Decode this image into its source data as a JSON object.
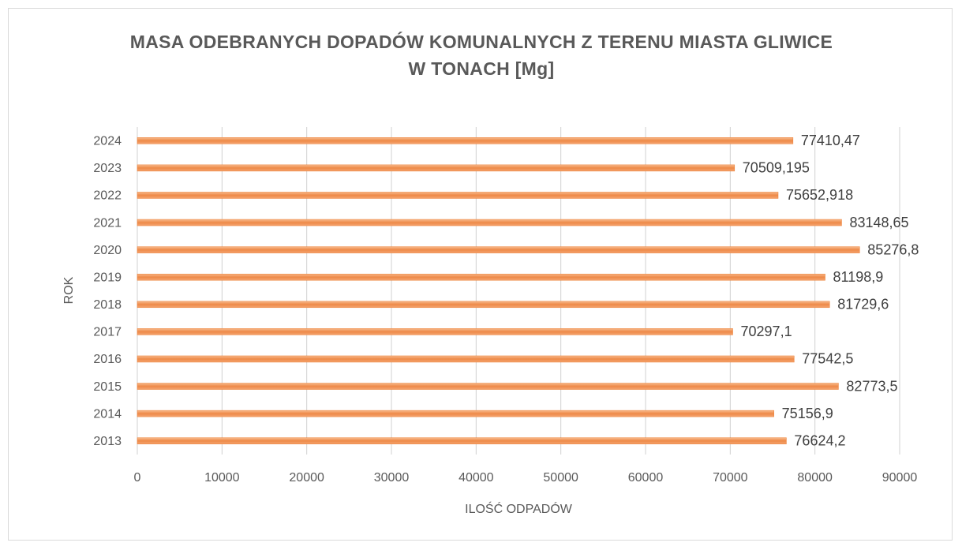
{
  "chart_data": {
    "type": "hbar",
    "title": "MASA ODEBRANYCH DOPADÓW KOMUNALNYCH Z TERENU MIASTA GLIWICE W TONACH [Mg]",
    "xlabel": "ILOŚĆ ODPADÓW",
    "ylabel": "ROK",
    "categories": [
      "2013",
      "2014",
      "2015",
      "2016",
      "2017",
      "2018",
      "2019",
      "2020",
      "2021",
      "2022",
      "2023",
      "2024"
    ],
    "values": [
      76624.2,
      75156.9,
      82773.5,
      77542.5,
      70297.1,
      81729.6,
      81198.9,
      85276.8,
      83148.65,
      75652.918,
      70509.195,
      77410.47
    ],
    "value_labels": [
      "76624,2",
      "75156,9",
      "82773,5",
      "77542,5",
      "70297,1",
      "81729,6",
      "81198,9",
      "85276,8",
      "83148,65",
      "75652,918",
      "70509,195",
      "77410,47"
    ],
    "color": "#ed7d31",
    "xlim": [
      0,
      90000
    ],
    "xticks": [
      0,
      10000,
      20000,
      30000,
      40000,
      50000,
      60000,
      70000,
      80000,
      90000
    ],
    "grid": true
  }
}
